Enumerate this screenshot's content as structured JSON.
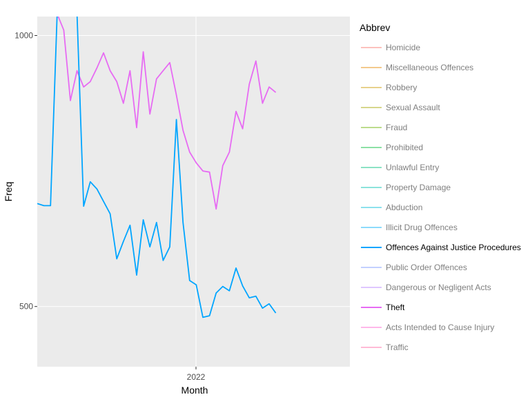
{
  "chart_data": {
    "type": "line",
    "xlabel": "Month",
    "ylabel": "Freq",
    "x_tick_labels": [
      "2022"
    ],
    "y_tick_labels": [
      "500",
      "1000"
    ],
    "y_ticks": [
      500,
      1000
    ],
    "ylim": [
      389,
      1035
    ],
    "grid": true,
    "legend_title": "Abbrev",
    "legend_placement": "right",
    "legend": [
      {
        "name": "Homicide",
        "color": "#F8766D",
        "active": false
      },
      {
        "name": "Miscellaneous Offences",
        "color": "#E58700",
        "active": false
      },
      {
        "name": "Robbery",
        "color": "#C99800",
        "active": false
      },
      {
        "name": "Sexual Assault",
        "color": "#A3A500",
        "active": false
      },
      {
        "name": "Fraud",
        "color": "#6BB100",
        "active": false
      },
      {
        "name": "Prohibited",
        "color": "#00BA38",
        "active": false
      },
      {
        "name": "Unlawful Entry",
        "color": "#00BF7D",
        "active": false
      },
      {
        "name": "Property Damage",
        "color": "#00C0AF",
        "active": false
      },
      {
        "name": "Abduction",
        "color": "#00BCD8",
        "active": false
      },
      {
        "name": "Illicit Drug Offences",
        "color": "#00B0F6",
        "active": false
      },
      {
        "name": "Offences Against Justice Procedures",
        "color": "#00A5FF",
        "active": true
      },
      {
        "name": "Public Order Offences",
        "color": "#7997FF",
        "active": false
      },
      {
        "name": "Dangerous or Negligent Acts",
        "color": "#B983FF",
        "active": false
      },
      {
        "name": "Theft",
        "color": "#E76BF3",
        "active": true
      },
      {
        "name": "Acts Intended to Cause Injury",
        "color": "#FD61D1",
        "active": false
      },
      {
        "name": "Traffic",
        "color": "#FF67A4",
        "active": false
      }
    ],
    "series": [
      {
        "name": "Theft",
        "color": "#E76BF3",
        "values": [
          1040,
          1040,
          1040,
          1040,
          1010,
          880,
          935,
          905,
          915,
          940,
          968,
          935,
          915,
          875,
          935,
          830,
          970,
          855,
          920,
          935,
          950,
          890,
          825,
          785,
          765,
          750,
          748,
          680,
          760,
          785,
          860,
          828,
          910,
          953,
          875,
          905,
          895
        ]
      },
      {
        "name": "Offences Against Justice Procedures",
        "color": "#00A5FF",
        "values": [
          690,
          686,
          686,
          1040,
          1040,
          1040,
          1040,
          685,
          730,
          717,
          694,
          671,
          588,
          620,
          650,
          558,
          660,
          610,
          655,
          585,
          610,
          845,
          655,
          548,
          540,
          480,
          483,
          525,
          537,
          529,
          571,
          538,
          516,
          519,
          497,
          505,
          488
        ]
      }
    ]
  }
}
